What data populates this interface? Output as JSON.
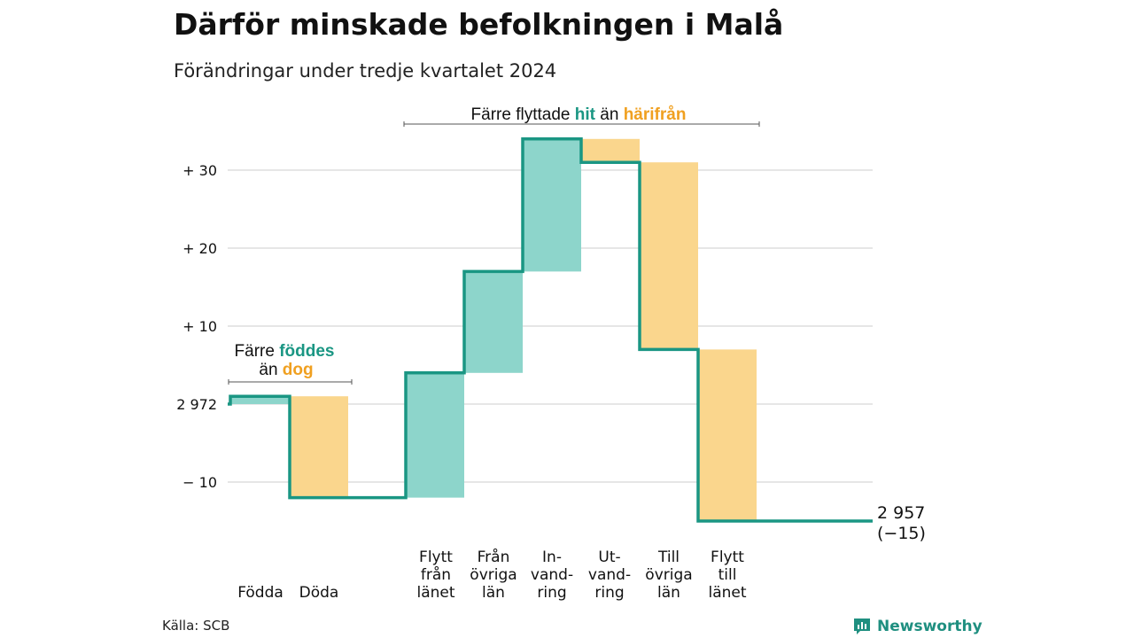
{
  "title": "Därför minskade befolkningen i Malå",
  "subtitle": "Förändringar under tredje kvartalet 2024",
  "source": "Källa: SCB",
  "brand": "Newsworthy",
  "colors": {
    "increase": "#8dd5cb",
    "decrease": "#fad68d",
    "line": "#1a9683",
    "grid": "#dddddd",
    "bracket": "#555555"
  },
  "annotations": {
    "migration": {
      "pre": "Färre flyttade ",
      "in": "hit",
      "mid": " än ",
      "out": "härifrån"
    },
    "births": {
      "line1_pre": "Färre ",
      "line1_in": "föddes",
      "line2_pre": "än ",
      "line2_out": "dog"
    }
  },
  "chart_data": {
    "type": "waterfall",
    "start_value": 2972,
    "start_label": "2 972",
    "end_value": 2957,
    "end_label_value": "2 957",
    "end_label_change": "(−15)",
    "y_ticks": [
      {
        "value": 30,
        "label": "+ 30"
      },
      {
        "value": 20,
        "label": "+ 20"
      },
      {
        "value": 10,
        "label": "+ 10"
      },
      {
        "value": 0,
        "label": "2 972"
      },
      {
        "value": -10,
        "label": "− 10"
      }
    ],
    "ylim": [
      -15,
      34
    ],
    "grid": true,
    "steps": [
      {
        "label": [
          "Födda"
        ],
        "change": 1
      },
      {
        "label": [
          "Döda"
        ],
        "change": -13
      },
      {
        "label": [
          "Flytt",
          "från",
          "länet"
        ],
        "change": 16
      },
      {
        "label": [
          "Från",
          "övriga",
          "län"
        ],
        "change": 13
      },
      {
        "label": [
          "In-",
          "vand-",
          "ring"
        ],
        "change": 17
      },
      {
        "label": [
          "Ut-",
          "vand-",
          "ring"
        ],
        "change": -3
      },
      {
        "label": [
          "Till",
          "övriga",
          "län"
        ],
        "change": -24
      },
      {
        "label": [
          "Flytt",
          "till",
          "länet"
        ],
        "change": -22
      }
    ]
  }
}
